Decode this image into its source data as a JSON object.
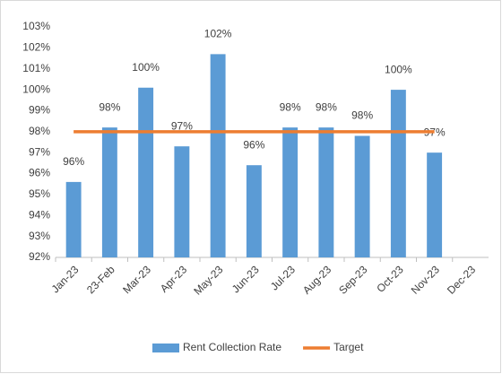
{
  "chart_data": {
    "type": "bar",
    "categories": [
      "Jan-23",
      "23-Feb",
      "Mar-23",
      "Apr-23",
      "May-23",
      "Jun-23",
      "Jul-23",
      "Aug-23",
      "Sep-23",
      "Oct-23",
      "Nov-23",
      "Dec-23"
    ],
    "series": [
      {
        "name": "Rent Collection Rate",
        "type": "bar",
        "color": "#5b9bd5",
        "values": [
          95.6,
          98.2,
          100.1,
          97.3,
          101.7,
          96.4,
          98.2,
          98.2,
          97.8,
          100.0,
          97.0,
          null
        ],
        "value_labels": [
          "96%",
          "98%",
          "100%",
          "97%",
          "102%",
          "96%",
          "98%",
          "98%",
          "98%",
          "100%",
          "97%",
          null
        ]
      },
      {
        "name": "Target",
        "type": "line",
        "color": "#ed7d31",
        "values": [
          98,
          98,
          98,
          98,
          98,
          98,
          98,
          98,
          98,
          98,
          98,
          null
        ]
      }
    ],
    "ylim": [
      92,
      103
    ],
    "yticks": [
      {
        "value": 92,
        "label": "92%"
      },
      {
        "value": 93,
        "label": "93%"
      },
      {
        "value": 94,
        "label": "94%"
      },
      {
        "value": 95,
        "label": "95%"
      },
      {
        "value": 96,
        "label": "96%"
      },
      {
        "value": 97,
        "label": "97%"
      },
      {
        "value": 98,
        "label": "98%"
      },
      {
        "value": 99,
        "label": "99%"
      },
      {
        "value": 100,
        "label": "100%"
      },
      {
        "value": 101,
        "label": "101%"
      },
      {
        "value": 102,
        "label": "102%"
      },
      {
        "value": 103,
        "label": "103%"
      }
    ],
    "grid": false,
    "legend": "bottom"
  }
}
